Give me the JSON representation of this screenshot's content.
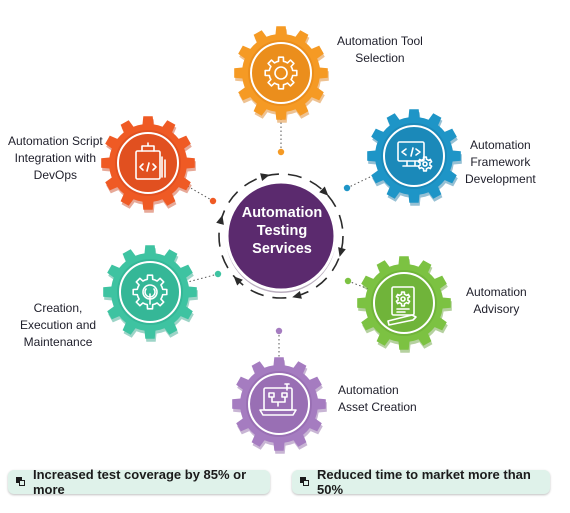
{
  "center": {
    "label": "Automation\nTesting\nServices",
    "color": "#5b2a6e"
  },
  "services": [
    {
      "id": "tool-selection",
      "label": "Automation Tool\nSelection",
      "color": "#f59a24",
      "dark": "#d9780e",
      "icon": "gear-icon"
    },
    {
      "id": "framework-development",
      "label": "Automation\nFramework\nDevelopment",
      "color": "#1e95c7",
      "dark": "#1673a0",
      "icon": "computer-code-icon"
    },
    {
      "id": "advisory",
      "label": "Automation\nAdvisory",
      "color": "#7cc242",
      "dark": "#5b9a2a",
      "icon": "document-gear-icon"
    },
    {
      "id": "asset-creation",
      "label": "Automation\nAsset Creation",
      "color": "#a57cc0",
      "dark": "#845a9f",
      "icon": "flowchart-laptop-icon"
    },
    {
      "id": "creation-execution-maintenance",
      "label": "Creation,\nExecution and\nMaintenance",
      "color": "#3ec3a1",
      "dark": "#25a083",
      "icon": "gear-wrench-icon"
    },
    {
      "id": "script-integration",
      "label": "Automation Script\nIntegration with\nDevOps",
      "color": "#ef5a24",
      "dark": "#c9401a",
      "icon": "code-file-icon"
    }
  ],
  "highlights": [
    {
      "text": "Increased test coverage by 85% or more"
    },
    {
      "text": "Reduced time to market more than 50%"
    }
  ]
}
